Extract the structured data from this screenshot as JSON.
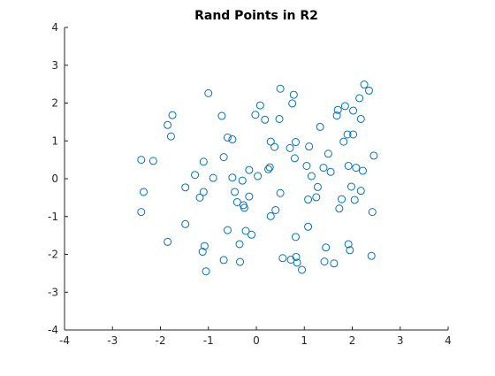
{
  "colors": {
    "background": "#ffffff",
    "axis": "#262626",
    "marker": "#0072bd",
    "text": "#000000"
  },
  "chart_data": {
    "type": "scatter",
    "title": "Rand Points in R2",
    "xlabel": "",
    "ylabel": "",
    "xlim": [
      -4,
      4
    ],
    "ylim": [
      -4,
      4
    ],
    "xticks": [
      -4,
      -3,
      -2,
      -1,
      0,
      1,
      2,
      3,
      4
    ],
    "yticks": [
      -4,
      -3,
      -2,
      -1,
      0,
      1,
      2,
      3,
      4
    ],
    "grid": false,
    "legend": false,
    "marker": "open-circle",
    "series": [
      {
        "points": [
          [
            -2.4,
            0.5
          ],
          [
            -2.35,
            -0.35
          ],
          [
            -2.4,
            -0.88
          ],
          [
            -2.15,
            0.47
          ],
          [
            -1.85,
            1.42
          ],
          [
            -1.78,
            1.12
          ],
          [
            -1.75,
            1.68
          ],
          [
            -1.85,
            -1.67
          ],
          [
            -1.48,
            -0.23
          ],
          [
            -1.48,
            -1.2
          ],
          [
            -1.28,
            0.1
          ],
          [
            -1.18,
            -0.5
          ],
          [
            -1.1,
            0.45
          ],
          [
            -1.1,
            -0.35
          ],
          [
            -1.12,
            -1.93
          ],
          [
            -1.08,
            -1.78
          ],
          [
            -1.05,
            -2.45
          ],
          [
            -1.0,
            2.26
          ],
          [
            -0.9,
            0.02
          ],
          [
            -0.72,
            1.66
          ],
          [
            -0.68,
            0.57
          ],
          [
            -0.68,
            -2.15
          ],
          [
            -0.6,
            1.09
          ],
          [
            -0.6,
            -1.36
          ],
          [
            -0.5,
            1.04
          ],
          [
            -0.5,
            0.03
          ],
          [
            -0.45,
            -0.35
          ],
          [
            -0.4,
            -0.62
          ],
          [
            -0.35,
            -1.73
          ],
          [
            -0.34,
            -2.2
          ],
          [
            -0.29,
            -0.05
          ],
          [
            -0.27,
            -0.7
          ],
          [
            -0.25,
            -0.77
          ],
          [
            -0.22,
            -1.38
          ],
          [
            -0.15,
            0.23
          ],
          [
            -0.15,
            -0.47
          ],
          [
            -0.1,
            -1.48
          ],
          [
            -0.02,
            1.69
          ],
          [
            0.03,
            0.07
          ],
          [
            0.08,
            1.94
          ],
          [
            0.18,
            1.56
          ],
          [
            0.25,
            0.25
          ],
          [
            0.28,
            0.3
          ],
          [
            0.3,
            0.98
          ],
          [
            0.3,
            -0.99
          ],
          [
            0.38,
            0.84
          ],
          [
            0.4,
            -0.83
          ],
          [
            0.48,
            1.58
          ],
          [
            0.5,
            2.38
          ],
          [
            0.5,
            -0.38
          ],
          [
            0.55,
            -2.1
          ],
          [
            0.7,
            0.81
          ],
          [
            0.72,
            -2.14
          ],
          [
            0.75,
            1.99
          ],
          [
            0.78,
            2.22
          ],
          [
            0.8,
            0.54
          ],
          [
            0.82,
            0.97
          ],
          [
            0.82,
            -1.54
          ],
          [
            0.83,
            -2.07
          ],
          [
            0.85,
            -2.22
          ],
          [
            0.95,
            -2.41
          ],
          [
            1.05,
            0.34
          ],
          [
            1.08,
            -0.55
          ],
          [
            1.08,
            -1.27
          ],
          [
            1.1,
            0.85
          ],
          [
            1.15,
            0.07
          ],
          [
            1.25,
            -0.49
          ],
          [
            1.28,
            -0.22
          ],
          [
            1.33,
            1.37
          ],
          [
            1.4,
            0.29
          ],
          [
            1.42,
            -2.19
          ],
          [
            1.45,
            -1.82
          ],
          [
            1.5,
            0.66
          ],
          [
            1.55,
            0.18
          ],
          [
            1.62,
            -2.24
          ],
          [
            1.68,
            1.67
          ],
          [
            1.7,
            1.82
          ],
          [
            1.73,
            -0.79
          ],
          [
            1.78,
            -0.54
          ],
          [
            1.82,
            0.98
          ],
          [
            1.85,
            1.92
          ],
          [
            1.9,
            1.17
          ],
          [
            1.92,
            0.34
          ],
          [
            1.92,
            -1.73
          ],
          [
            1.95,
            -1.89
          ],
          [
            1.98,
            -0.21
          ],
          [
            2.02,
            1.8
          ],
          [
            2.02,
            1.17
          ],
          [
            2.05,
            -0.56
          ],
          [
            2.08,
            0.29
          ],
          [
            2.15,
            2.13
          ],
          [
            2.18,
            1.58
          ],
          [
            2.18,
            -0.32
          ],
          [
            2.22,
            0.21
          ],
          [
            2.25,
            2.49
          ],
          [
            2.35,
            2.33
          ],
          [
            2.4,
            -2.04
          ],
          [
            2.42,
            -0.88
          ],
          [
            2.45,
            0.61
          ]
        ]
      }
    ]
  }
}
